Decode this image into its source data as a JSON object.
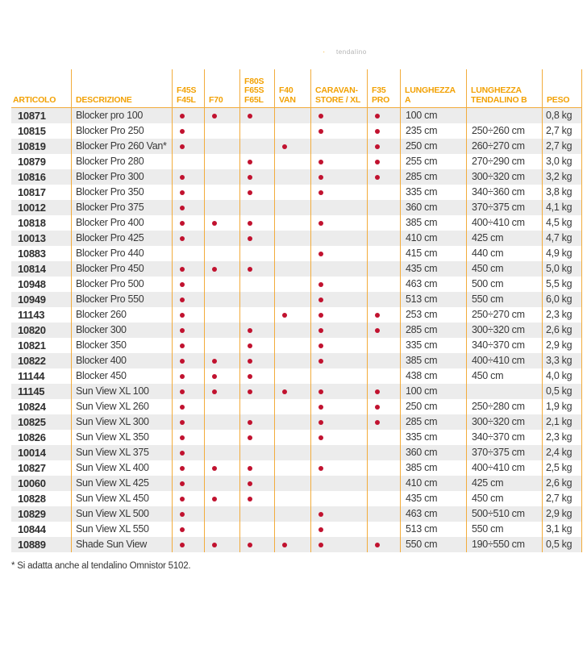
{
  "top_note": {
    "bullet": "·",
    "text": "tendalino"
  },
  "table": {
    "headers": {
      "articolo": "ARTICOLO",
      "descrizione": "DESCRIZIONE",
      "compat": [
        "F45S\nF45L",
        "F70",
        "F80S\nF65S\nF65L",
        "F40\nVAN",
        "CARAVAN-\nSTORE / XL",
        "F35\nPRO"
      ],
      "lunghezza_a": "LUNGHEZZA\nA",
      "lunghezza_b": "LUNGHEZZA\nTENDALINO B",
      "peso": "PESO"
    },
    "rows": [
      {
        "articolo": "10871",
        "descrizione": "Blocker pro 100",
        "compat": [
          1,
          1,
          1,
          0,
          1,
          1
        ],
        "lunghezza_a": "100 cm",
        "lunghezza_b": "",
        "peso": "0,8 kg"
      },
      {
        "articolo": "10815",
        "descrizione": "Blocker Pro 250",
        "compat": [
          1,
          0,
          0,
          0,
          1,
          1
        ],
        "lunghezza_a": "235 cm",
        "lunghezza_b": "250÷260 cm",
        "peso": "2,7 kg"
      },
      {
        "articolo": "10819",
        "descrizione": "Blocker Pro 260 Van*",
        "compat": [
          1,
          0,
          0,
          1,
          0,
          1
        ],
        "lunghezza_a": "250 cm",
        "lunghezza_b": "260÷270 cm",
        "peso": "2,7 kg"
      },
      {
        "articolo": "10879",
        "descrizione": "Blocker Pro 280",
        "compat": [
          0,
          0,
          1,
          0,
          1,
          1
        ],
        "lunghezza_a": "255 cm",
        "lunghezza_b": "270÷290 cm",
        "peso": "3,0 kg"
      },
      {
        "articolo": "10816",
        "descrizione": "Blocker Pro 300",
        "compat": [
          1,
          0,
          1,
          0,
          1,
          1
        ],
        "lunghezza_a": "285 cm",
        "lunghezza_b": "300÷320 cm",
        "peso": "3,2 kg"
      },
      {
        "articolo": "10817",
        "descrizione": "Blocker Pro 350",
        "compat": [
          1,
          0,
          1,
          0,
          1,
          0
        ],
        "lunghezza_a": "335 cm",
        "lunghezza_b": "340÷360 cm",
        "peso": "3,8 kg"
      },
      {
        "articolo": "10012",
        "descrizione": "Blocker Pro 375",
        "compat": [
          1,
          0,
          0,
          0,
          0,
          0
        ],
        "lunghezza_a": "360 cm",
        "lunghezza_b": "370÷375 cm",
        "peso": "4,1 kg"
      },
      {
        "articolo": "10818",
        "descrizione": "Blocker Pro 400",
        "compat": [
          1,
          1,
          1,
          0,
          1,
          0
        ],
        "lunghezza_a": "385 cm",
        "lunghezza_b": "400÷410 cm",
        "peso": "4,5 kg"
      },
      {
        "articolo": "10013",
        "descrizione": "Blocker Pro 425",
        "compat": [
          1,
          0,
          1,
          0,
          0,
          0
        ],
        "lunghezza_a": "410 cm",
        "lunghezza_b": "425 cm",
        "peso": "4,7 kg"
      },
      {
        "articolo": "10883",
        "descrizione": "Blocker Pro 440",
        "compat": [
          0,
          0,
          0,
          0,
          1,
          0
        ],
        "lunghezza_a": "415 cm",
        "lunghezza_b": "440 cm",
        "peso": "4,9 kg"
      },
      {
        "articolo": "10814",
        "descrizione": "Blocker Pro 450",
        "compat": [
          1,
          1,
          1,
          0,
          0,
          0
        ],
        "lunghezza_a": "435 cm",
        "lunghezza_b": "450 cm",
        "peso": "5,0 kg"
      },
      {
        "articolo": "10948",
        "descrizione": "Blocker Pro 500",
        "compat": [
          1,
          0,
          0,
          0,
          1,
          0
        ],
        "lunghezza_a": "463 cm",
        "lunghezza_b": "500 cm",
        "peso": "5,5 kg"
      },
      {
        "articolo": "10949",
        "descrizione": "Blocker Pro 550",
        "compat": [
          1,
          0,
          0,
          0,
          1,
          0
        ],
        "lunghezza_a": "513 cm",
        "lunghezza_b": "550 cm",
        "peso": "6,0 kg"
      },
      {
        "articolo": "11143",
        "descrizione": "Blocker 260",
        "compat": [
          1,
          0,
          0,
          1,
          1,
          1
        ],
        "lunghezza_a": "253 cm",
        "lunghezza_b": "250÷270 cm",
        "peso": "2,3 kg"
      },
      {
        "articolo": "10820",
        "descrizione": "Blocker 300",
        "compat": [
          1,
          0,
          1,
          0,
          1,
          1
        ],
        "lunghezza_a": "285 cm",
        "lunghezza_b": "300÷320 cm",
        "peso": "2,6 kg"
      },
      {
        "articolo": "10821",
        "descrizione": "Blocker 350",
        "compat": [
          1,
          0,
          1,
          0,
          1,
          0
        ],
        "lunghezza_a": "335 cm",
        "lunghezza_b": "340÷370 cm",
        "peso": "2,9 kg"
      },
      {
        "articolo": "10822",
        "descrizione": "Blocker 400",
        "compat": [
          1,
          1,
          1,
          0,
          1,
          0
        ],
        "lunghezza_a": "385 cm",
        "lunghezza_b": "400÷410 cm",
        "peso": "3,3 kg"
      },
      {
        "articolo": "11144",
        "descrizione": "Blocker 450",
        "compat": [
          1,
          1,
          1,
          0,
          0,
          0
        ],
        "lunghezza_a": "438 cm",
        "lunghezza_b": "450 cm",
        "peso": "4,0 kg"
      },
      {
        "articolo": "11145",
        "descrizione": "Sun View XL 100",
        "compat": [
          1,
          1,
          1,
          1,
          1,
          1
        ],
        "lunghezza_a": "100 cm",
        "lunghezza_b": "",
        "peso": "0,5 kg"
      },
      {
        "articolo": "10824",
        "descrizione": "Sun View XL 260",
        "compat": [
          1,
          0,
          0,
          0,
          1,
          1
        ],
        "lunghezza_a": "250 cm",
        "lunghezza_b": "250÷280 cm",
        "peso": "1,9 kg"
      },
      {
        "articolo": "10825",
        "descrizione": "Sun View XL 300",
        "compat": [
          1,
          0,
          1,
          0,
          1,
          1
        ],
        "lunghezza_a": "285 cm",
        "lunghezza_b": "300÷320 cm",
        "peso": "2,1 kg"
      },
      {
        "articolo": "10826",
        "descrizione": "Sun View XL 350",
        "compat": [
          1,
          0,
          1,
          0,
          1,
          0
        ],
        "lunghezza_a": "335 cm",
        "lunghezza_b": "340÷370 cm",
        "peso": "2,3 kg"
      },
      {
        "articolo": "10014",
        "descrizione": "Sun View XL 375",
        "compat": [
          1,
          0,
          0,
          0,
          0,
          0
        ],
        "lunghezza_a": "360 cm",
        "lunghezza_b": "370÷375 cm",
        "peso": "2,4 kg"
      },
      {
        "articolo": "10827",
        "descrizione": "Sun View XL 400",
        "compat": [
          1,
          1,
          1,
          0,
          1,
          0
        ],
        "lunghezza_a": "385 cm",
        "lunghezza_b": "400÷410 cm",
        "peso": "2,5 kg"
      },
      {
        "articolo": "10060",
        "descrizione": "Sun View XL 425",
        "compat": [
          1,
          0,
          1,
          0,
          0,
          0
        ],
        "lunghezza_a": "410 cm",
        "lunghezza_b": "425 cm",
        "peso": "2,6 kg"
      },
      {
        "articolo": "10828",
        "descrizione": "Sun View XL 450",
        "compat": [
          1,
          1,
          1,
          0,
          0,
          0
        ],
        "lunghezza_a": "435 cm",
        "lunghezza_b": "450 cm",
        "peso": "2,7 kg"
      },
      {
        "articolo": "10829",
        "descrizione": "Sun View XL 500",
        "compat": [
          1,
          0,
          0,
          0,
          1,
          0
        ],
        "lunghezza_a": "463 cm",
        "lunghezza_b": "500÷510 cm",
        "peso": "2,9 kg"
      },
      {
        "articolo": "10844",
        "descrizione": "Sun View XL 550",
        "compat": [
          1,
          0,
          0,
          0,
          1,
          0
        ],
        "lunghezza_a": "513 cm",
        "lunghezza_b": "550 cm",
        "peso": "3,1 kg"
      },
      {
        "articolo": "10889",
        "descrizione": "Shade Sun View",
        "compat": [
          1,
          1,
          1,
          1,
          1,
          1
        ],
        "lunghezza_a": "550 cm",
        "lunghezza_b": "190÷550 cm",
        "peso": "0,5 kg"
      }
    ]
  },
  "footnote": "* Si adatta anche al tendalino Omnistor 5102.",
  "colors": {
    "accent": "#F2A104",
    "grid_line": "#F2AC3C",
    "dot": "#C1122F",
    "stripe": "#ECECEC",
    "text": "#333333",
    "muted": "#999999"
  }
}
